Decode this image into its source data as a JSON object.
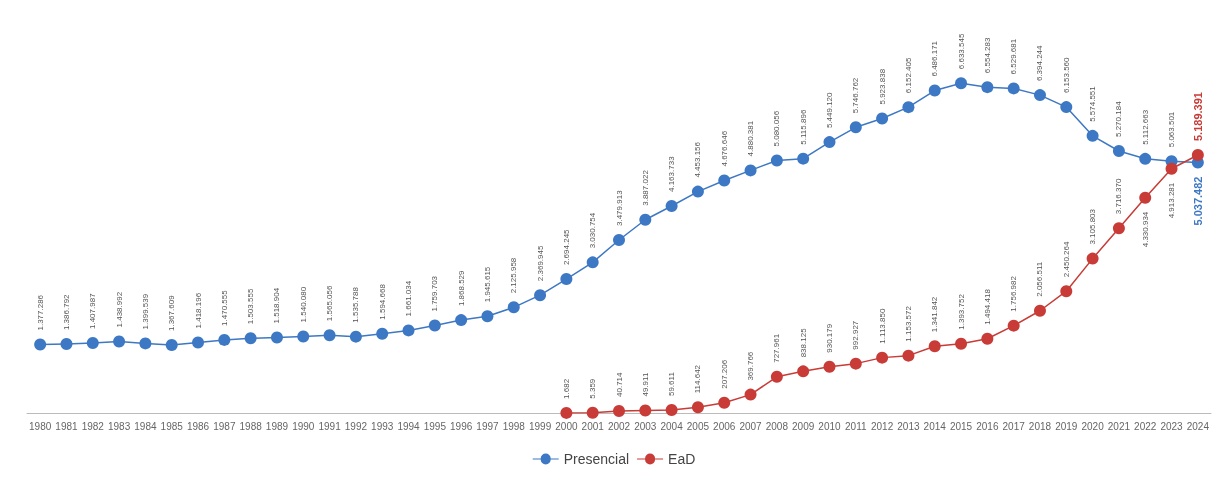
{
  "chart_data": {
    "type": "line",
    "categories": [
      "1980",
      "1981",
      "1982",
      "1983",
      "1984",
      "1985",
      "1986",
      "1987",
      "1988",
      "1989",
      "1990",
      "1991",
      "1992",
      "1993",
      "1994",
      "1995",
      "1996",
      "1997",
      "1998",
      "1999",
      "2000",
      "2001",
      "2002",
      "2003",
      "2004",
      "2005",
      "2006",
      "2007",
      "2008",
      "2009",
      "2010",
      "2011",
      "2012",
      "2013",
      "2014",
      "2015",
      "2016",
      "2017",
      "2018",
      "2019",
      "2020",
      "2021",
      "2022",
      "2023",
      "2024"
    ],
    "series": [
      {
        "name": "Presencial",
        "color": "#3d78c4",
        "values": [
          1377286,
          1386792,
          1407987,
          1438992,
          1399539,
          1367609,
          1418196,
          1470555,
          1503555,
          1518904,
          1540080,
          1565056,
          1535788,
          1594668,
          1661034,
          1759703,
          1868529,
          1945615,
          2125958,
          2369945,
          2694245,
          3030754,
          3479913,
          3887022,
          4163733,
          4453156,
          4676646,
          4880381,
          5080056,
          5115896,
          5449120,
          5746762,
          5923838,
          6152405,
          6486171,
          6633545,
          6554283,
          6529681,
          6394244,
          6153560,
          5574551,
          5270184,
          5112663,
          5063501,
          5037482
        ],
        "value_labels": [
          "1.377.286",
          "1.386.792",
          "1.407.987",
          "1.438.992",
          "1.399.539",
          "1.367.609",
          "1.418.196",
          "1.470.555",
          "1.503.555",
          "1.518.904",
          "1.540.080",
          "1.565.056",
          "1.535.788",
          "1.594.668",
          "1.661.034",
          "1.759.703",
          "1.868.529",
          "1.945.615",
          "2.125.958",
          "2.369.945",
          "2.694.245",
          "3.030.754",
          "3.479.913",
          "3.887.022",
          "4.163.733",
          "4.453.156",
          "4.676.646",
          "4.880.381",
          "5.080.056",
          "5.115.896",
          "5.449.120",
          "5.746.762",
          "5.923.838",
          "6.152.405",
          "6.486.171",
          "6.633.545",
          "6.554.283",
          "6.529.681",
          "6.394.244",
          "6.153.560",
          "5.574.551",
          "5.270.184",
          "5.112.663",
          "5.063.501",
          "5.037.482"
        ]
      },
      {
        "name": "EaD",
        "color": "#c83b36",
        "values": [
          null,
          null,
          null,
          null,
          null,
          null,
          null,
          null,
          null,
          null,
          null,
          null,
          null,
          null,
          null,
          null,
          null,
          null,
          null,
          null,
          1682,
          5359,
          40714,
          49911,
          59611,
          114642,
          207206,
          369766,
          727961,
          838125,
          930179,
          992927,
          1113850,
          1153572,
          1341842,
          1393752,
          1494418,
          1756982,
          2056511,
          2450264,
          3105803,
          3716370,
          4330934,
          4913281,
          5189391
        ],
        "value_labels": [
          null,
          null,
          null,
          null,
          null,
          null,
          null,
          null,
          null,
          null,
          null,
          null,
          null,
          null,
          null,
          null,
          null,
          null,
          null,
          null,
          "1.682",
          "5.359",
          "40.714",
          "49.911",
          "59.611",
          "114.642",
          "207.206",
          "369.766",
          "727.961",
          "838.125",
          "930.179",
          "992.927",
          "1.113.850",
          "1.153.572",
          "1.341.842",
          "1.393.752",
          "1.494.418",
          "1.756.982",
          "2.056.511",
          "2.450.264",
          "3.105.803",
          "3.716.370",
          "4.330.934",
          "4.913.281",
          "5.189.391"
        ]
      }
    ],
    "marker": "circle",
    "grid": false,
    "legend": "bottom"
  }
}
